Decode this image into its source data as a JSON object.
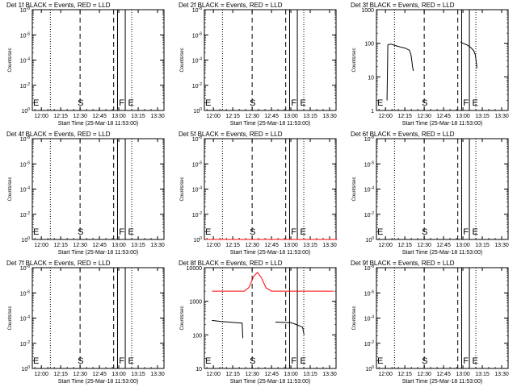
{
  "figure": {
    "panel_rows": 3,
    "panel_cols": 3
  },
  "chart_data": [
    {
      "type": "line",
      "title": "Det 1f BLACK = Events, RED = LLD",
      "xlabel": "Start Time (25-Mar-18 11:53:00)",
      "ylabel": "Counts/sec",
      "scale": "log",
      "xlim": [
        "11:53",
        "13:35"
      ],
      "ylim_exp": [
        0,
        8
      ],
      "xticks": [
        "12:00",
        "12:15",
        "12:30",
        "12:45",
        "13:00",
        "13:15",
        "13:30"
      ],
      "yticks": [
        "10^0",
        "10^-2",
        "10^-4",
        "10^-6",
        "10^-8"
      ],
      "markers": [
        {
          "label": "E",
          "time": "11:53"
        },
        {
          "label": "S",
          "time": "12:30"
        },
        {
          "label": "F",
          "time": "13:02"
        },
        {
          "label": "E",
          "time": "13:09"
        }
      ],
      "series": []
    },
    {
      "type": "line",
      "title": "Det 2f BLACK = Events, RED = LLD",
      "xlabel": "Start Time (25-Mar-18 11:53:00)",
      "ylabel": "Counts/sec",
      "scale": "log",
      "xlim": [
        "11:53",
        "13:35"
      ],
      "ylim_exp": [
        0,
        8
      ],
      "xticks": [
        "12:00",
        "12:15",
        "12:30",
        "12:45",
        "13:00",
        "13:15",
        "13:30"
      ],
      "yticks": [
        "10^0",
        "10^-2",
        "10^-4",
        "10^-6",
        "10^-8"
      ],
      "markers": [
        {
          "label": "E",
          "time": "11:53"
        },
        {
          "label": "S",
          "time": "12:30"
        },
        {
          "label": "F",
          "time": "13:02"
        },
        {
          "label": "E",
          "time": "13:09"
        }
      ],
      "series": []
    },
    {
      "type": "line",
      "title": "Det 3f BLACK = Events, RED = LLD",
      "xlabel": "Start Time (25-Mar-18 11:53:00)",
      "ylabel": "Counts/sec",
      "scale": "log",
      "xlim": [
        "11:53",
        "13:35"
      ],
      "ylim_exp": [
        0,
        3
      ],
      "xticks": [
        "12:00",
        "12:15",
        "12:30",
        "12:45",
        "13:00",
        "13:15",
        "13:30"
      ],
      "yticks": [
        "1",
        "10",
        "100",
        "1000"
      ],
      "markers": [
        {
          "label": "E",
          "time": "11:53"
        },
        {
          "label": "S",
          "time": "12:30"
        },
        {
          "label": "F",
          "time": "13:02"
        },
        {
          "label": "E",
          "time": "13:09"
        }
      ],
      "series": [
        {
          "color": "#000000",
          "points": [
            [
              12.02,
              2
            ],
            [
              12.03,
              90
            ],
            [
              12.07,
              95
            ],
            [
              12.13,
              85
            ],
            [
              12.19,
              78
            ],
            [
              12.25,
              72
            ],
            [
              12.31,
              62
            ],
            [
              12.33,
              45
            ],
            [
              12.34,
              30
            ],
            [
              12.35,
              20
            ],
            [
              12.36,
              15
            ]
          ]
        },
        {
          "color": "#000000",
          "points": [
            [
              12.97,
              110
            ],
            [
              13.0,
              100
            ],
            [
              13.05,
              90
            ],
            [
              13.1,
              75
            ],
            [
              13.14,
              60
            ],
            [
              13.16,
              45
            ],
            [
              13.17,
              30
            ],
            [
              13.18,
              18
            ]
          ]
        }
      ]
    },
    {
      "type": "line",
      "title": "Det 4f BLACK = Events, RED = LLD",
      "xlabel": "Start Time (25-Mar-18 11:53:00)",
      "ylabel": "Counts/sec",
      "scale": "log",
      "xlim": [
        "11:53",
        "13:35"
      ],
      "ylim_exp": [
        0,
        8
      ],
      "xticks": [
        "12:00",
        "12:15",
        "12:30",
        "12:45",
        "13:00",
        "13:15",
        "13:30"
      ],
      "yticks": [
        "10^0",
        "10^-2",
        "10^-4",
        "10^-6",
        "10^-8"
      ],
      "markers": [
        {
          "label": "E",
          "time": "11:53"
        },
        {
          "label": "S",
          "time": "12:30"
        },
        {
          "label": "F",
          "time": "13:02"
        },
        {
          "label": "E",
          "time": "13:09"
        }
      ],
      "series": []
    },
    {
      "type": "line",
      "title": "Det 5f BLACK = Events, RED = LLD",
      "xlabel": "Start Time (25-Mar-18 11:53:00)",
      "ylabel": "Counts/sec",
      "scale": "log",
      "xlim": [
        "11:53",
        "13:35"
      ],
      "ylim_exp": [
        0,
        8
      ],
      "xticks": [
        "12:00",
        "12:15",
        "12:30",
        "12:45",
        "13:00",
        "13:15",
        "13:30"
      ],
      "yticks": [
        "10^0",
        "10^-2",
        "10^-4",
        "10^-6",
        "10^-8"
      ],
      "markers": [
        {
          "label": "E",
          "time": "11:53"
        },
        {
          "label": "S",
          "time": "12:30"
        },
        {
          "label": "F",
          "time": "13:02"
        },
        {
          "label": "E",
          "time": "13:09"
        }
      ],
      "series": [
        {
          "color": "#ff0000",
          "points": [
            [
              11.9,
              0
            ],
            [
              13.6,
              0
            ]
          ]
        }
      ]
    },
    {
      "type": "line",
      "title": "Det 6f BLACK = Events, RED = LLD",
      "xlabel": "Start Time (25-Mar-18 11:53:00)",
      "ylabel": "Counts/sec",
      "scale": "log",
      "xlim": [
        "11:53",
        "13:35"
      ],
      "ylim_exp": [
        0,
        8
      ],
      "xticks": [
        "12:00",
        "12:15",
        "12:30",
        "12:45",
        "13:00",
        "13:15",
        "13:30"
      ],
      "yticks": [
        "10^0",
        "10^-2",
        "10^-4",
        "10^-6",
        "10^-8"
      ],
      "markers": [
        {
          "label": "E",
          "time": "11:53"
        },
        {
          "label": "S",
          "time": "12:30"
        },
        {
          "label": "F",
          "time": "13:02"
        },
        {
          "label": "E",
          "time": "13:09"
        }
      ],
      "series": []
    },
    {
      "type": "line",
      "title": "Det 7f BLACK = Events, RED = LLD",
      "xlabel": "Start Time (25-Mar-18 11:53:00)",
      "ylabel": "Counts/sec",
      "scale": "log",
      "xlim": [
        "11:53",
        "13:35"
      ],
      "ylim_exp": [
        0,
        8
      ],
      "xticks": [
        "12:00",
        "12:15",
        "12:30",
        "12:45",
        "13:00",
        "13:15",
        "13:30"
      ],
      "yticks": [
        "10^0",
        "10^-2",
        "10^-4",
        "10^-6",
        "10^-8"
      ],
      "markers": [
        {
          "label": "E",
          "time": "11:53"
        },
        {
          "label": "S",
          "time": "12:30"
        },
        {
          "label": "F",
          "time": "13:02"
        },
        {
          "label": "E",
          "time": "13:09"
        }
      ],
      "series": []
    },
    {
      "type": "line",
      "title": "Det 8f BLACK = Events, RED = LLD",
      "xlabel": "Start Time (25-Mar-18 11:53:00)",
      "ylabel": "Counts/sec",
      "scale": "log",
      "xlim": [
        "11:53",
        "13:35"
      ],
      "ylim_exp": [
        1,
        4
      ],
      "xticks": [
        "12:00",
        "12:15",
        "12:30",
        "12:45",
        "13:00",
        "13:15",
        "13:30"
      ],
      "yticks": [
        "10",
        "100",
        "1000",
        "10000"
      ],
      "markers": [
        {
          "label": "E",
          "time": "11:53"
        },
        {
          "label": "S",
          "time": "12:30"
        },
        {
          "label": "F",
          "time": "13:02"
        },
        {
          "label": "E",
          "time": "13:09"
        }
      ],
      "series": [
        {
          "color": "#ff0000",
          "points": [
            [
              11.98,
              2000
            ],
            [
              12.4,
              2000
            ],
            [
              12.46,
              2600
            ],
            [
              12.52,
              5500
            ],
            [
              12.57,
              7200
            ],
            [
              12.62,
              5000
            ],
            [
              12.68,
              2500
            ],
            [
              12.75,
              2000
            ],
            [
              13.55,
              2000
            ]
          ]
        },
        {
          "color": "#000000",
          "points": [
            [
              11.98,
              270
            ],
            [
              12.1,
              250
            ],
            [
              12.2,
              240
            ],
            [
              12.3,
              230
            ],
            [
              12.37,
              225
            ],
            [
              12.38,
              80
            ]
          ]
        },
        {
          "color": "#000000",
          "points": [
            [
              12.8,
              240
            ],
            [
              12.9,
              235
            ],
            [
              13.0,
              230
            ],
            [
              13.05,
              210
            ],
            [
              13.1,
              190
            ],
            [
              13.15,
              170
            ],
            [
              13.17,
              100
            ]
          ]
        }
      ]
    },
    {
      "type": "line",
      "title": "Det 9f BLACK = Events, RED = LLD",
      "xlabel": "Start Time (25-Mar-18 11:53:00)",
      "ylabel": "Counts/sec",
      "scale": "log",
      "xlim": [
        "11:53",
        "13:35"
      ],
      "ylim_exp": [
        0,
        8
      ],
      "xticks": [
        "12:00",
        "12:15",
        "12:30",
        "12:45",
        "13:00",
        "13:15",
        "13:30"
      ],
      "yticks": [
        "10^0",
        "10^-2",
        "10^-4",
        "10^-6",
        "10^-8"
      ],
      "markers": [
        {
          "label": "E",
          "time": "11:53"
        },
        {
          "label": "S",
          "time": "12:30"
        },
        {
          "label": "F",
          "time": "13:02"
        },
        {
          "label": "E",
          "time": "13:09"
        }
      ],
      "series": []
    }
  ]
}
